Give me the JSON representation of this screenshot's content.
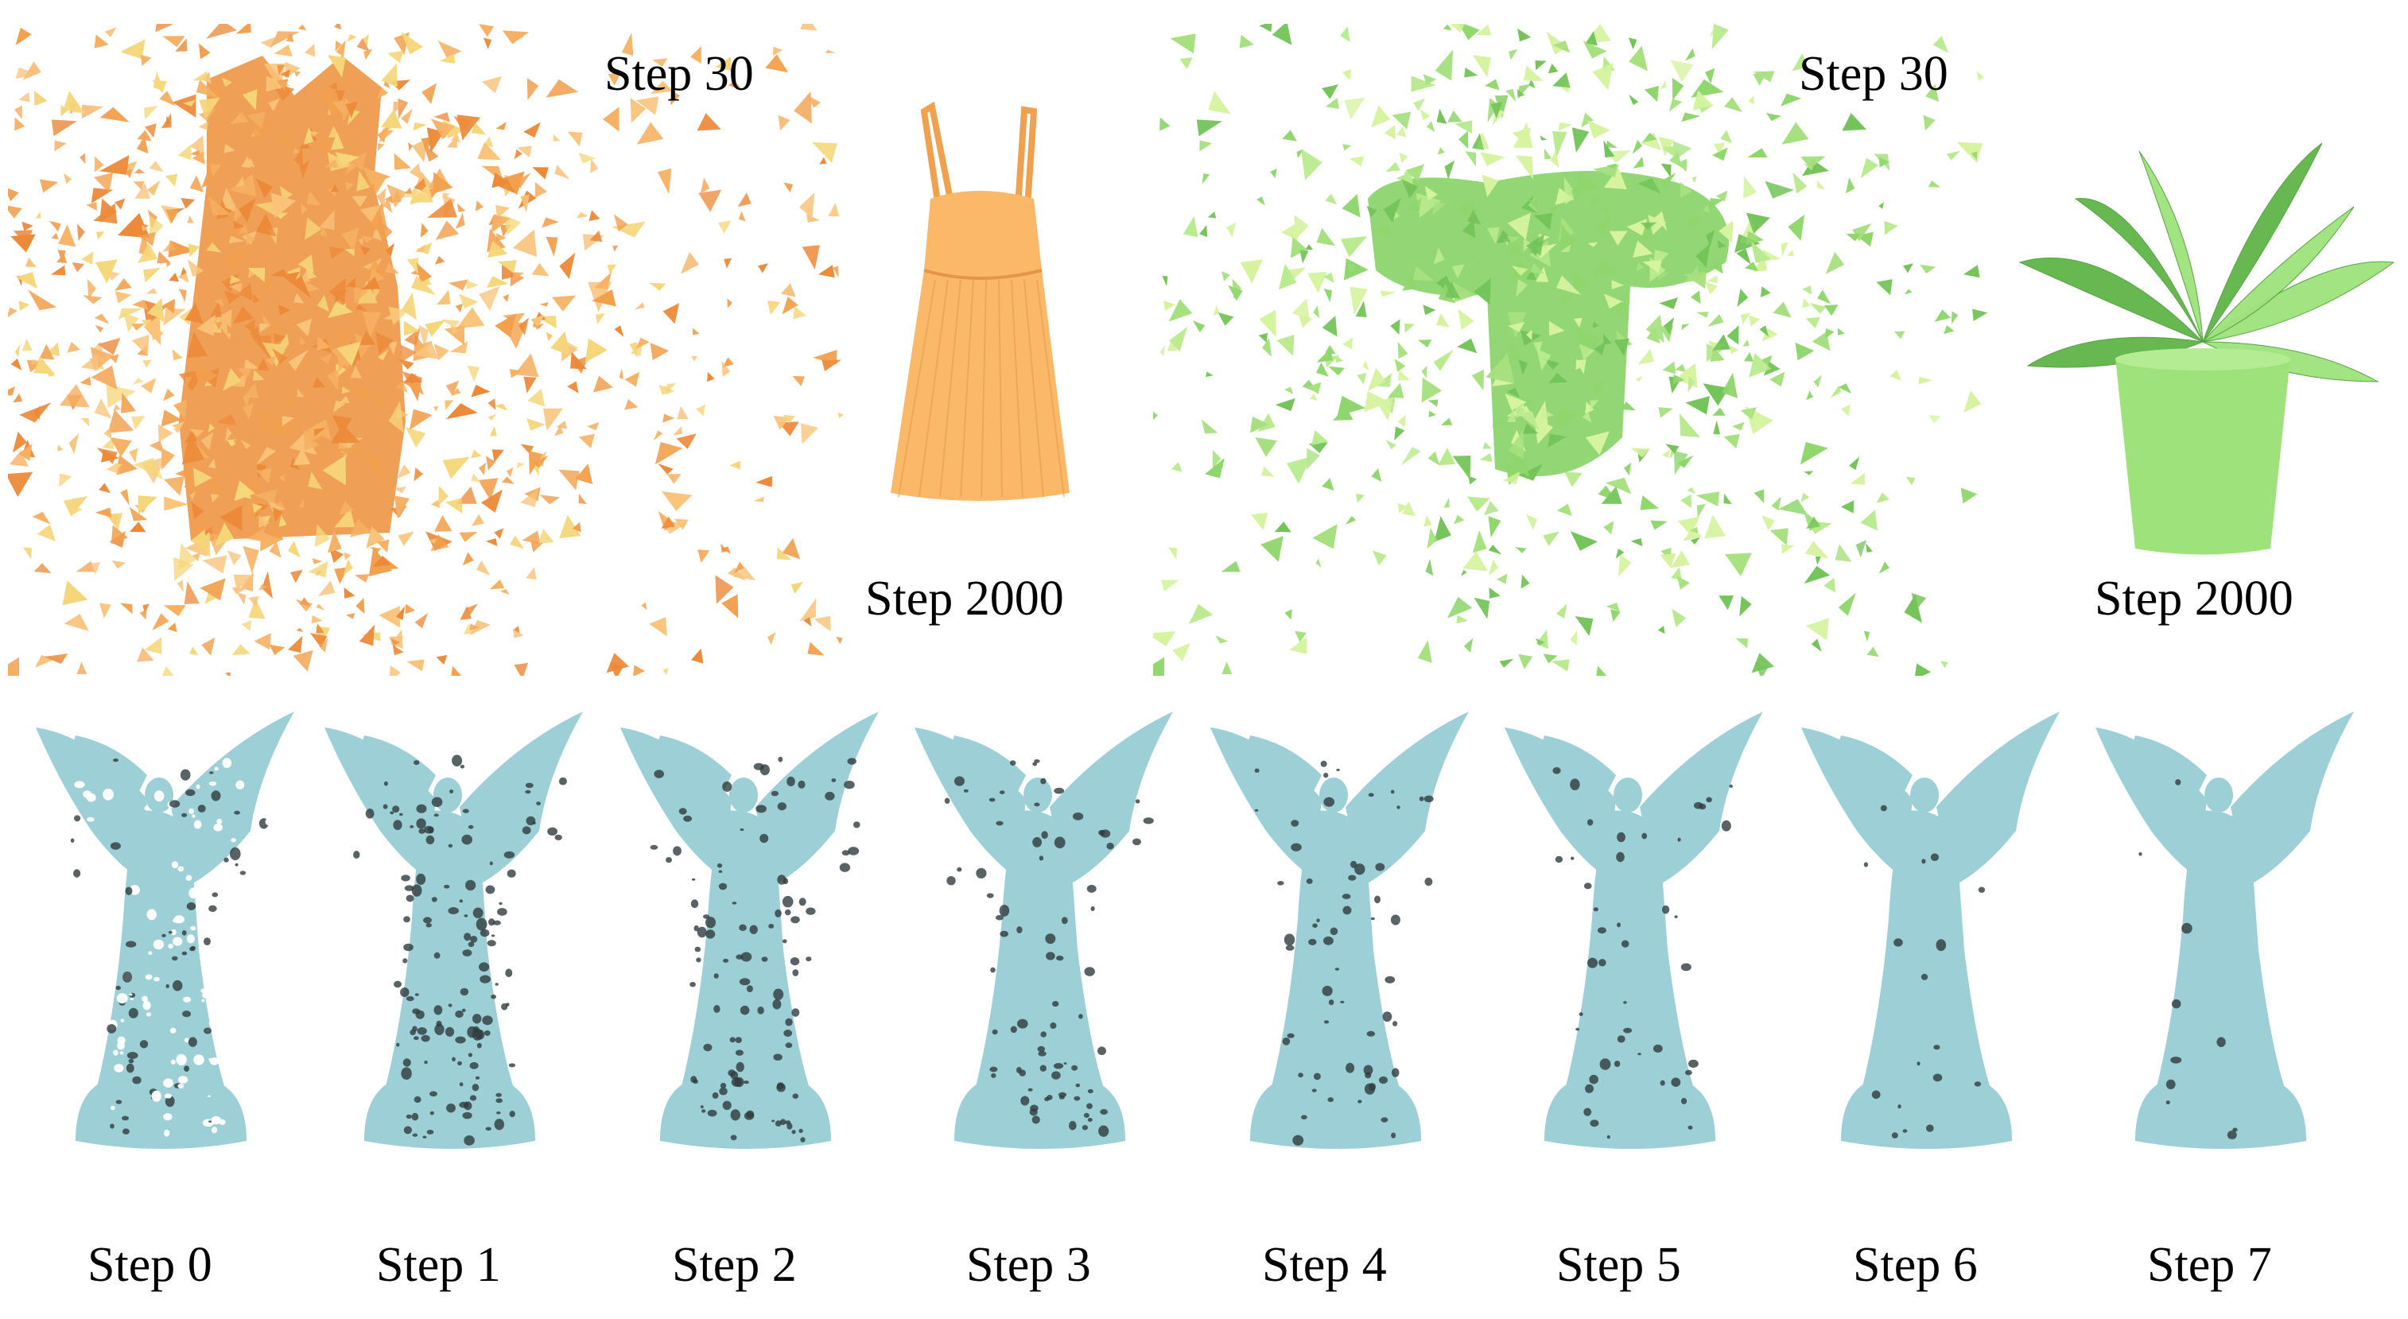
{
  "figure": {
    "top_row": {
      "dress": {
        "early_label": "Step 30",
        "final_label": "Step 2000",
        "palette": [
          "#f2a04e",
          "#f6b062",
          "#f9c37a",
          "#f5d67a",
          "#ec8a3a"
        ],
        "final_color": "#fbb869"
      },
      "plant": {
        "early_label": "Step 30",
        "final_label": "Step 2000",
        "palette": [
          "#8fd66d",
          "#a6e07f",
          "#b9ea8e",
          "#d6f3a0",
          "#74c45a"
        ],
        "final_color": "#9ee27c"
      }
    },
    "bottom_row": {
      "statue_color": "#9ccfd6",
      "hole_color": "#2f3b3e",
      "steps": [
        {
          "label": "Step 0",
          "hole_fraction": 0.95
        },
        {
          "label": "Step 1",
          "hole_fraction": 0.8
        },
        {
          "label": "Step 2",
          "hole_fraction": 0.62
        },
        {
          "label": "Step 3",
          "hole_fraction": 0.45
        },
        {
          "label": "Step 4",
          "hole_fraction": 0.35
        },
        {
          "label": "Step 5",
          "hole_fraction": 0.26
        },
        {
          "label": "Step 6",
          "hole_fraction": 0.1
        },
        {
          "label": "Step 7",
          "hole_fraction": 0.06
        }
      ]
    }
  }
}
